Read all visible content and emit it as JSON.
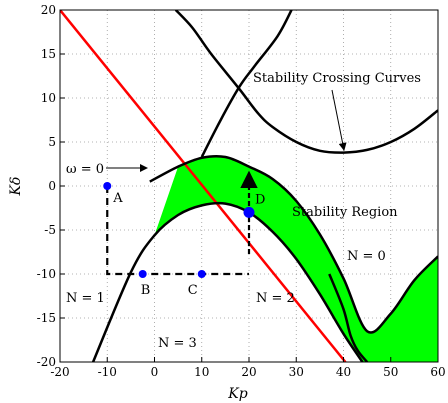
{
  "chart_data": {
    "type": "line",
    "title": "",
    "xlabel": "Kp",
    "ylabel": "Kδ",
    "xlim": [
      -20,
      60
    ],
    "ylim": [
      -20,
      20
    ],
    "xticks": [
      "-20",
      "-10",
      "0",
      "10",
      "20",
      "30",
      "40",
      "50",
      "60"
    ],
    "yticks": [
      "20",
      "15",
      "10",
      "5",
      "0",
      "-5",
      "-10",
      "-15",
      "-20"
    ],
    "grid": "dotted",
    "colors": {
      "region_fill": "#00ff00",
      "red_line": "#ff0000",
      "points": "#0000ff",
      "curves": "#000000"
    },
    "series": [
      {
        "style": "red",
        "x": [
          -20,
          40.4
        ],
        "y": [
          20,
          -20
        ]
      },
      {
        "style": "black",
        "x": [
          -1,
          5,
          10,
          15,
          20,
          25,
          30,
          35,
          40,
          45,
          50,
          55,
          60
        ],
        "y": [
          0.5,
          2.2,
          3.2,
          3.3,
          2.2,
          0.8,
          -1.7,
          -5.5,
          -10.5,
          -16.5,
          -14.5,
          -10.7,
          -8.0
        ]
      },
      {
        "style": "black",
        "x": [
          -13,
          -5,
          0,
          5,
          10,
          15,
          20,
          25,
          30,
          35,
          40,
          44
        ],
        "y": [
          -20,
          -9.8,
          -5.6,
          -3.3,
          -2.2,
          -2.0,
          -3.0,
          -5.2,
          -8.3,
          -12.3,
          -16.8,
          -20
        ]
      },
      {
        "style": "black",
        "x": [
          4.5,
          8,
          12,
          18,
          22,
          25,
          30,
          35,
          40,
          45,
          50,
          55,
          60
        ],
        "y": [
          20,
          18,
          15,
          11,
          8.2,
          6.7,
          5.0,
          4.0,
          3.8,
          4.1,
          5.0,
          6.5,
          8.6
        ]
      },
      {
        "style": "black",
        "x": [
          29,
          26,
          21,
          18,
          14,
          10
        ],
        "y": [
          20,
          17,
          13.5,
          11.3,
          7.5,
          3.3
        ]
      },
      {
        "style": "black",
        "x": [
          37,
          40,
          41.5,
          43,
          45
        ],
        "y": [
          -10,
          -14,
          -17,
          -18.7,
          -20
        ]
      }
    ],
    "points": [
      {
        "label": "A",
        "x": -10,
        "y": 0
      },
      {
        "label": "B",
        "x": -2.5,
        "y": -10
      },
      {
        "label": "C",
        "x": 10,
        "y": -10
      },
      {
        "label": "D",
        "x": 20,
        "y": -3
      }
    ],
    "dashed_path": [
      [
        -10,
        0
      ],
      [
        -10,
        -10
      ],
      [
        20,
        -10
      ],
      [
        20,
        1.5
      ]
    ],
    "annotations": {
      "omega": "ω = 0",
      "crossing": "Stability Crossing Curves",
      "region": "Stability Region",
      "n0": "N = 0",
      "n1": "N = 1",
      "n2": "N = 2",
      "n3": "N = 3"
    }
  }
}
